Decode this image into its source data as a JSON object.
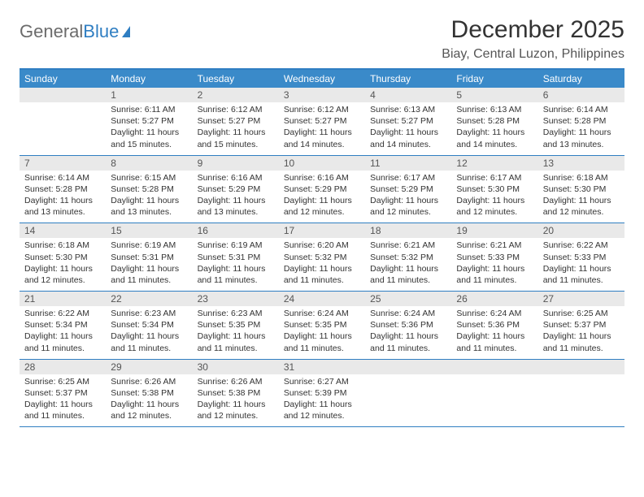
{
  "brand": {
    "part1": "General",
    "part2": "Blue"
  },
  "title": "December 2025",
  "location": "Biay, Central Luzon, Philippines",
  "colors": {
    "accent": "#2f7ec2",
    "header_bg": "#3a8ac9",
    "daynum_bg": "#e9e9e9"
  },
  "dow": [
    "Sunday",
    "Monday",
    "Tuesday",
    "Wednesday",
    "Thursday",
    "Friday",
    "Saturday"
  ],
  "weeks": [
    [
      {
        "n": "",
        "sr": "",
        "ss": "",
        "dl": ""
      },
      {
        "n": "1",
        "sr": "Sunrise: 6:11 AM",
        "ss": "Sunset: 5:27 PM",
        "dl": "Daylight: 11 hours and 15 minutes."
      },
      {
        "n": "2",
        "sr": "Sunrise: 6:12 AM",
        "ss": "Sunset: 5:27 PM",
        "dl": "Daylight: 11 hours and 15 minutes."
      },
      {
        "n": "3",
        "sr": "Sunrise: 6:12 AM",
        "ss": "Sunset: 5:27 PM",
        "dl": "Daylight: 11 hours and 14 minutes."
      },
      {
        "n": "4",
        "sr": "Sunrise: 6:13 AM",
        "ss": "Sunset: 5:27 PM",
        "dl": "Daylight: 11 hours and 14 minutes."
      },
      {
        "n": "5",
        "sr": "Sunrise: 6:13 AM",
        "ss": "Sunset: 5:28 PM",
        "dl": "Daylight: 11 hours and 14 minutes."
      },
      {
        "n": "6",
        "sr": "Sunrise: 6:14 AM",
        "ss": "Sunset: 5:28 PM",
        "dl": "Daylight: 11 hours and 13 minutes."
      }
    ],
    [
      {
        "n": "7",
        "sr": "Sunrise: 6:14 AM",
        "ss": "Sunset: 5:28 PM",
        "dl": "Daylight: 11 hours and 13 minutes."
      },
      {
        "n": "8",
        "sr": "Sunrise: 6:15 AM",
        "ss": "Sunset: 5:28 PM",
        "dl": "Daylight: 11 hours and 13 minutes."
      },
      {
        "n": "9",
        "sr": "Sunrise: 6:16 AM",
        "ss": "Sunset: 5:29 PM",
        "dl": "Daylight: 11 hours and 13 minutes."
      },
      {
        "n": "10",
        "sr": "Sunrise: 6:16 AM",
        "ss": "Sunset: 5:29 PM",
        "dl": "Daylight: 11 hours and 12 minutes."
      },
      {
        "n": "11",
        "sr": "Sunrise: 6:17 AM",
        "ss": "Sunset: 5:29 PM",
        "dl": "Daylight: 11 hours and 12 minutes."
      },
      {
        "n": "12",
        "sr": "Sunrise: 6:17 AM",
        "ss": "Sunset: 5:30 PM",
        "dl": "Daylight: 11 hours and 12 minutes."
      },
      {
        "n": "13",
        "sr": "Sunrise: 6:18 AM",
        "ss": "Sunset: 5:30 PM",
        "dl": "Daylight: 11 hours and 12 minutes."
      }
    ],
    [
      {
        "n": "14",
        "sr": "Sunrise: 6:18 AM",
        "ss": "Sunset: 5:30 PM",
        "dl": "Daylight: 11 hours and 12 minutes."
      },
      {
        "n": "15",
        "sr": "Sunrise: 6:19 AM",
        "ss": "Sunset: 5:31 PM",
        "dl": "Daylight: 11 hours and 11 minutes."
      },
      {
        "n": "16",
        "sr": "Sunrise: 6:19 AM",
        "ss": "Sunset: 5:31 PM",
        "dl": "Daylight: 11 hours and 11 minutes."
      },
      {
        "n": "17",
        "sr": "Sunrise: 6:20 AM",
        "ss": "Sunset: 5:32 PM",
        "dl": "Daylight: 11 hours and 11 minutes."
      },
      {
        "n": "18",
        "sr": "Sunrise: 6:21 AM",
        "ss": "Sunset: 5:32 PM",
        "dl": "Daylight: 11 hours and 11 minutes."
      },
      {
        "n": "19",
        "sr": "Sunrise: 6:21 AM",
        "ss": "Sunset: 5:33 PM",
        "dl": "Daylight: 11 hours and 11 minutes."
      },
      {
        "n": "20",
        "sr": "Sunrise: 6:22 AM",
        "ss": "Sunset: 5:33 PM",
        "dl": "Daylight: 11 hours and 11 minutes."
      }
    ],
    [
      {
        "n": "21",
        "sr": "Sunrise: 6:22 AM",
        "ss": "Sunset: 5:34 PM",
        "dl": "Daylight: 11 hours and 11 minutes."
      },
      {
        "n": "22",
        "sr": "Sunrise: 6:23 AM",
        "ss": "Sunset: 5:34 PM",
        "dl": "Daylight: 11 hours and 11 minutes."
      },
      {
        "n": "23",
        "sr": "Sunrise: 6:23 AM",
        "ss": "Sunset: 5:35 PM",
        "dl": "Daylight: 11 hours and 11 minutes."
      },
      {
        "n": "24",
        "sr": "Sunrise: 6:24 AM",
        "ss": "Sunset: 5:35 PM",
        "dl": "Daylight: 11 hours and 11 minutes."
      },
      {
        "n": "25",
        "sr": "Sunrise: 6:24 AM",
        "ss": "Sunset: 5:36 PM",
        "dl": "Daylight: 11 hours and 11 minutes."
      },
      {
        "n": "26",
        "sr": "Sunrise: 6:24 AM",
        "ss": "Sunset: 5:36 PM",
        "dl": "Daylight: 11 hours and 11 minutes."
      },
      {
        "n": "27",
        "sr": "Sunrise: 6:25 AM",
        "ss": "Sunset: 5:37 PM",
        "dl": "Daylight: 11 hours and 11 minutes."
      }
    ],
    [
      {
        "n": "28",
        "sr": "Sunrise: 6:25 AM",
        "ss": "Sunset: 5:37 PM",
        "dl": "Daylight: 11 hours and 11 minutes."
      },
      {
        "n": "29",
        "sr": "Sunrise: 6:26 AM",
        "ss": "Sunset: 5:38 PM",
        "dl": "Daylight: 11 hours and 12 minutes."
      },
      {
        "n": "30",
        "sr": "Sunrise: 6:26 AM",
        "ss": "Sunset: 5:38 PM",
        "dl": "Daylight: 11 hours and 12 minutes."
      },
      {
        "n": "31",
        "sr": "Sunrise: 6:27 AM",
        "ss": "Sunset: 5:39 PM",
        "dl": "Daylight: 11 hours and 12 minutes."
      },
      {
        "n": "",
        "sr": "",
        "ss": "",
        "dl": ""
      },
      {
        "n": "",
        "sr": "",
        "ss": "",
        "dl": ""
      },
      {
        "n": "",
        "sr": "",
        "ss": "",
        "dl": ""
      }
    ]
  ]
}
